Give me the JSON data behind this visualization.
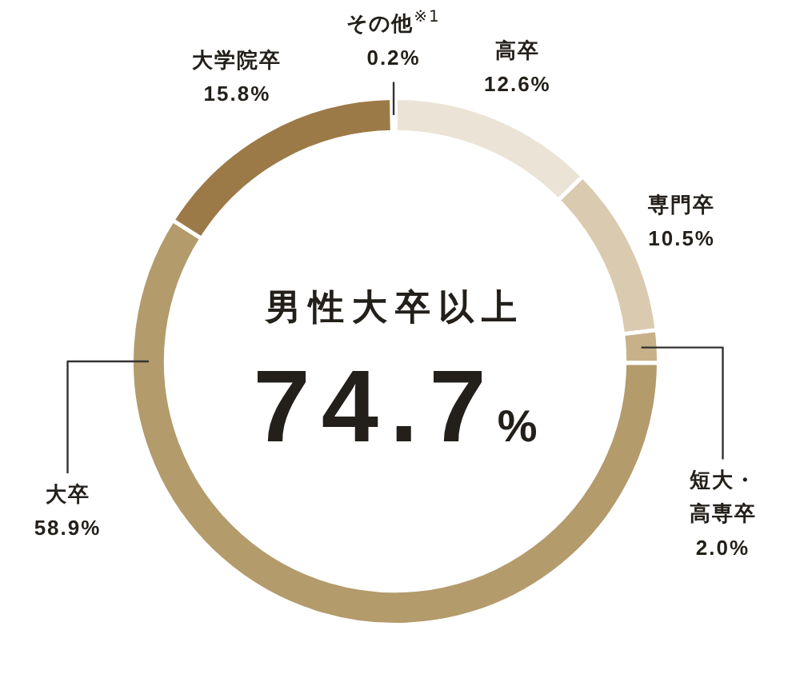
{
  "chart_data": {
    "type": "donut",
    "title": "男性大卒以上",
    "annotations": [
      "74.7%"
    ],
    "categories": [
      "高卒",
      "専門卒",
      "短大・高専卒",
      "大卒",
      "大学院卒",
      "その他$^{※1}$"
    ],
    "values": [
      12.6,
      10.5,
      2.0,
      58.9,
      15.8,
      0.2
    ],
    "colors": [
      "#ebe4d6",
      "#dacbb0",
      "#c8b189",
      "#b39b6c",
      "#9c7a47",
      "#c4aa80"
    ],
    "value_labels": [
      "12.6%",
      "10.5%",
      "2.0%",
      "58.9%",
      "15.8%",
      "0.2%"
    ]
  }
}
